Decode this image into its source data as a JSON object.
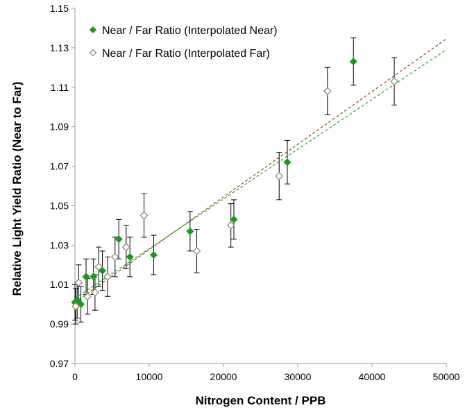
{
  "chart_data": {
    "type": "scatter",
    "title": "",
    "xlabel": "Nitrogen Content / PPB",
    "ylabel": "Relative Light Yield Ratio (Near to Far)",
    "xlim": [
      0,
      50000
    ],
    "ylim": [
      0.97,
      1.15
    ],
    "x_ticks": [
      "0",
      "10000",
      "20000",
      "30000",
      "40000",
      "50000"
    ],
    "y_ticks": [
      "0.97",
      "0.99",
      "1.01",
      "1.03",
      "1.05",
      "1.07",
      "1.09",
      "1.11",
      "1.13",
      "1.15"
    ],
    "grid": false,
    "legend_position": "top-left",
    "series": [
      {
        "name": "Near / Far Ratio (Interpolated Near)",
        "marker": "filled-diamond",
        "color": "#1a9a1a",
        "points": [
          {
            "x": 0,
            "y": 1.001,
            "err": 0.009
          },
          {
            "x": 300,
            "y": 1.002,
            "err": 0.009
          },
          {
            "x": 800,
            "y": 1.0,
            "err": 0.009
          },
          {
            "x": 1500,
            "y": 1.014,
            "err": 0.009
          },
          {
            "x": 2500,
            "y": 1.014,
            "err": 0.009
          },
          {
            "x": 3700,
            "y": 1.017,
            "err": 0.01
          },
          {
            "x": 5900,
            "y": 1.033,
            "err": 0.01
          },
          {
            "x": 7400,
            "y": 1.024,
            "err": 0.01
          },
          {
            "x": 10600,
            "y": 1.025,
            "err": 0.01
          },
          {
            "x": 15500,
            "y": 1.037,
            "err": 0.01
          },
          {
            "x": 21400,
            "y": 1.043,
            "err": 0.01
          },
          {
            "x": 28600,
            "y": 1.072,
            "err": 0.011
          },
          {
            "x": 37500,
            "y": 1.123,
            "err": 0.012
          }
        ],
        "fit": {
          "intercept": 1.003,
          "slope_per_ppb": 2.52e-06
        }
      },
      {
        "name": "Near / Far Ratio (Interpolated Far)",
        "marker": "open-diamond",
        "color": "#8c8c78",
        "points": [
          {
            "x": 100,
            "y": 0.999,
            "err": 0.009
          },
          {
            "x": 500,
            "y": 1.011,
            "err": 0.009
          },
          {
            "x": 1700,
            "y": 1.004,
            "err": 0.009
          },
          {
            "x": 2700,
            "y": 1.006,
            "err": 0.009
          },
          {
            "x": 3200,
            "y": 1.019,
            "err": 0.01
          },
          {
            "x": 4400,
            "y": 1.014,
            "err": 0.01
          },
          {
            "x": 5400,
            "y": 1.024,
            "err": 0.01
          },
          {
            "x": 6900,
            "y": 1.029,
            "err": 0.011
          },
          {
            "x": 9300,
            "y": 1.045,
            "err": 0.011
          },
          {
            "x": 16400,
            "y": 1.027,
            "err": 0.011
          },
          {
            "x": 21000,
            "y": 1.04,
            "err": 0.011
          },
          {
            "x": 27500,
            "y": 1.065,
            "err": 0.012
          },
          {
            "x": 34000,
            "y": 1.108,
            "err": 0.012
          },
          {
            "x": 43000,
            "y": 1.113,
            "err": 0.012
          }
        ],
        "fit": {
          "intercept": 1.001,
          "slope_per_ppb": 2.67e-06
        }
      }
    ]
  }
}
